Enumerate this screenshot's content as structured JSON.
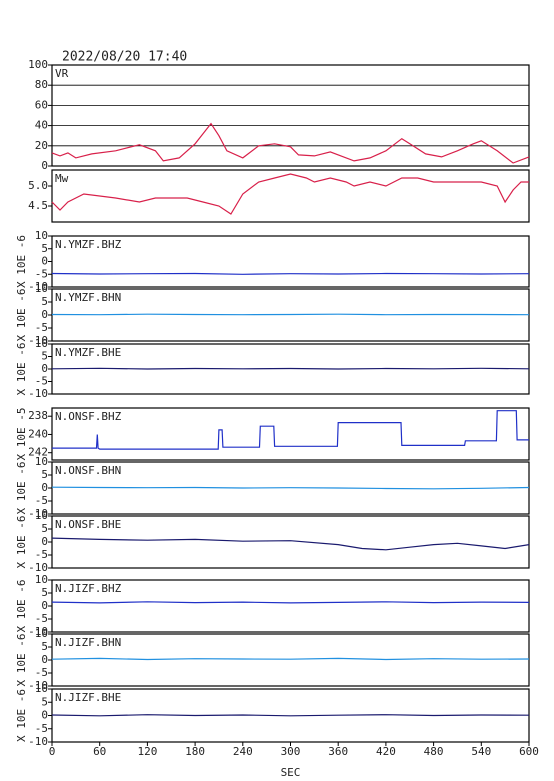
{
  "chart_data": [
    {
      "type": "line",
      "title": "2022/08/20 17:40",
      "label": "VR",
      "color": "#d8204a",
      "grid": true,
      "xlim": [
        0,
        600
      ],
      "ylim": [
        0,
        100
      ],
      "yticks": [
        0,
        20,
        40,
        60,
        80,
        100
      ],
      "x": [
        0,
        10,
        20,
        30,
        50,
        80,
        110,
        130,
        140,
        160,
        180,
        190,
        200,
        210,
        220,
        240,
        260,
        280,
        300,
        310,
        330,
        350,
        380,
        400,
        420,
        440,
        450,
        470,
        490,
        510,
        530,
        540,
        560,
        580,
        600
      ],
      "values": [
        13,
        10,
        13,
        8,
        12,
        15,
        21,
        15,
        5,
        8,
        22,
        32,
        42,
        30,
        15,
        8,
        20,
        22,
        19,
        11,
        10,
        14,
        5,
        8,
        15,
        27,
        22,
        12,
        9,
        15,
        22,
        25,
        15,
        3,
        9
      ]
    },
    {
      "type": "line",
      "label": "Mw",
      "color": "#d8204a",
      "xlim": [
        0,
        600
      ],
      "ylim": [
        4.1,
        5.4
      ],
      "yticks": [
        4.5,
        {
          "value": 5,
          "label": "5.0"
        }
      ],
      "x": [
        0,
        10,
        20,
        40,
        80,
        110,
        130,
        150,
        170,
        190,
        210,
        225,
        240,
        260,
        280,
        300,
        320,
        330,
        350,
        370,
        380,
        400,
        420,
        440,
        460,
        480,
        500,
        540,
        560,
        570,
        580,
        590,
        600
      ],
      "values": [
        4.6,
        4.4,
        4.6,
        4.8,
        4.7,
        4.6,
        4.7,
        4.7,
        4.7,
        4.6,
        4.5,
        4.3,
        4.8,
        5.1,
        5.2,
        5.3,
        5.2,
        5.1,
        5.2,
        5.1,
        5.0,
        5.1,
        5.0,
        5.2,
        5.2,
        5.1,
        5.1,
        5.1,
        5.0,
        4.6,
        4.9,
        5.1,
        5.1
      ]
    },
    {
      "type": "line",
      "label": "N.YMZF.BHZ",
      "ylabel": "X 10E -6",
      "color": "#2030c8",
      "xlim": [
        0,
        600
      ],
      "ylim": [
        -10,
        10
      ],
      "yticks": [
        -10,
        -5,
        0,
        5,
        10
      ],
      "x": [
        0,
        60,
        120,
        180,
        240,
        300,
        360,
        420,
        480,
        540,
        600
      ],
      "values": [
        -4.7,
        -4.9,
        -4.8,
        -4.7,
        -5.0,
        -4.8,
        -4.9,
        -4.7,
        -4.8,
        -4.9,
        -4.8
      ]
    },
    {
      "type": "line",
      "label": "N.YMZF.BHN",
      "ylabel": "X 10E -6",
      "color": "#2090e0",
      "xlim": [
        0,
        600
      ],
      "ylim": [
        -10,
        10
      ],
      "yticks": [
        -10,
        -5,
        0,
        5,
        10
      ],
      "x": [
        0,
        60,
        120,
        180,
        240,
        300,
        360,
        420,
        480,
        540,
        600
      ],
      "values": [
        0.2,
        0.1,
        0.3,
        0.2,
        0.1,
        0.2,
        0.3,
        0.1,
        0.2,
        0.2,
        0.1
      ]
    },
    {
      "type": "line",
      "label": "N.YMZF.BHE",
      "ylabel": "X 10E -6",
      "color": "#1a1a6e",
      "xlim": [
        0,
        600
      ],
      "ylim": [
        -10,
        10
      ],
      "yticks": [
        -10,
        -5,
        0,
        5,
        10
      ],
      "x": [
        0,
        60,
        120,
        180,
        240,
        300,
        360,
        420,
        480,
        540,
        600
      ],
      "values": [
        0.1,
        0.3,
        0.0,
        0.2,
        0.1,
        0.2,
        0.0,
        0.2,
        0.1,
        0.3,
        0.1
      ]
    },
    {
      "type": "line",
      "label": "N.ONSF.BHZ",
      "ylabel": "X 10E -5",
      "color": "#2030c8",
      "xlim": [
        0,
        600
      ],
      "ylim": [
        -242.8,
        -237.1
      ],
      "yticks": [
        {
          "value": -242,
          "label": "242"
        },
        {
          "value": -240,
          "label": "240"
        },
        {
          "value": -238,
          "label": "238"
        }
      ],
      "x": [
        0,
        56,
        57,
        58,
        60,
        209,
        210,
        214,
        215,
        261,
        262,
        279,
        280,
        359,
        360,
        439,
        440,
        519,
        520,
        559,
        560,
        584,
        585,
        600
      ],
      "values": [
        -241.5,
        -241.5,
        -240.0,
        -241.5,
        -241.6,
        -241.6,
        -239.5,
        -239.5,
        -241.4,
        -241.4,
        -239.1,
        -239.1,
        -241.3,
        -241.3,
        -238.7,
        -238.7,
        -241.2,
        -241.2,
        -240.7,
        -240.7,
        -237.4,
        -237.4,
        -240.6,
        -240.6
      ]
    },
    {
      "type": "line",
      "label": "N.ONSF.BHN",
      "ylabel": "X 10E -6",
      "color": "#2090e0",
      "xlim": [
        0,
        600
      ],
      "ylim": [
        -10,
        10
      ],
      "yticks": [
        -10,
        -5,
        0,
        5,
        10
      ],
      "x": [
        0,
        60,
        120,
        180,
        240,
        300,
        360,
        420,
        480,
        540,
        600
      ],
      "values": [
        0.3,
        0.2,
        0.1,
        0.2,
        0.0,
        0.1,
        0.0,
        -0.2,
        -0.3,
        -0.1,
        0.2
      ]
    },
    {
      "type": "line",
      "label": "N.ONSF.BHE",
      "ylabel": "X 10E -6",
      "color": "#1a1a6e",
      "xlim": [
        0,
        600
      ],
      "ylim": [
        -10,
        10
      ],
      "yticks": [
        -10,
        -5,
        0,
        5,
        10
      ],
      "x": [
        0,
        60,
        120,
        180,
        240,
        300,
        360,
        390,
        420,
        450,
        480,
        510,
        540,
        570,
        600
      ],
      "values": [
        1.5,
        1.0,
        0.7,
        1.0,
        0.3,
        0.5,
        -1.0,
        -2.5,
        -3.0,
        -2.0,
        -1.0,
        -0.5,
        -1.5,
        -2.5,
        -1.0
      ]
    },
    {
      "type": "line",
      "label": "N.JIZF.BHZ",
      "ylabel": "X 10E -6",
      "color": "#2030c8",
      "xlim": [
        0,
        600
      ],
      "ylim": [
        -10,
        10
      ],
      "yticks": [
        -10,
        -5,
        0,
        5,
        10
      ],
      "x": [
        0,
        60,
        120,
        180,
        240,
        300,
        360,
        420,
        480,
        540,
        600
      ],
      "values": [
        1.5,
        1.2,
        1.6,
        1.3,
        1.5,
        1.2,
        1.4,
        1.6,
        1.3,
        1.5,
        1.4
      ]
    },
    {
      "type": "line",
      "label": "N.JIZF.BHN",
      "ylabel": "X 10E -6",
      "color": "#2090e0",
      "xlim": [
        0,
        600
      ],
      "ylim": [
        -10,
        10
      ],
      "yticks": [
        -10,
        -5,
        0,
        5,
        10
      ],
      "x": [
        0,
        60,
        120,
        180,
        240,
        300,
        360,
        420,
        480,
        540,
        600
      ],
      "values": [
        0.3,
        0.6,
        0.2,
        0.5,
        0.4,
        0.3,
        0.6,
        0.2,
        0.5,
        0.3,
        0.4
      ]
    },
    {
      "type": "line",
      "label": "N.JIZF.BHE",
      "ylabel": "X 10E -6",
      "color": "#1a1a6e",
      "xlim": [
        0,
        600
      ],
      "ylim": [
        -10,
        10
      ],
      "yticks": [
        -10,
        -5,
        0,
        5,
        10
      ],
      "xticks": [
        0,
        60,
        120,
        180,
        240,
        300,
        360,
        420,
        480,
        540,
        600
      ],
      "xlabel": "SEC",
      "x": [
        0,
        60,
        120,
        180,
        240,
        300,
        360,
        420,
        480,
        540,
        600
      ],
      "values": [
        0.2,
        -0.1,
        0.3,
        0.0,
        0.2,
        -0.1,
        0.1,
        0.3,
        0.0,
        0.2,
        0.1
      ]
    }
  ]
}
